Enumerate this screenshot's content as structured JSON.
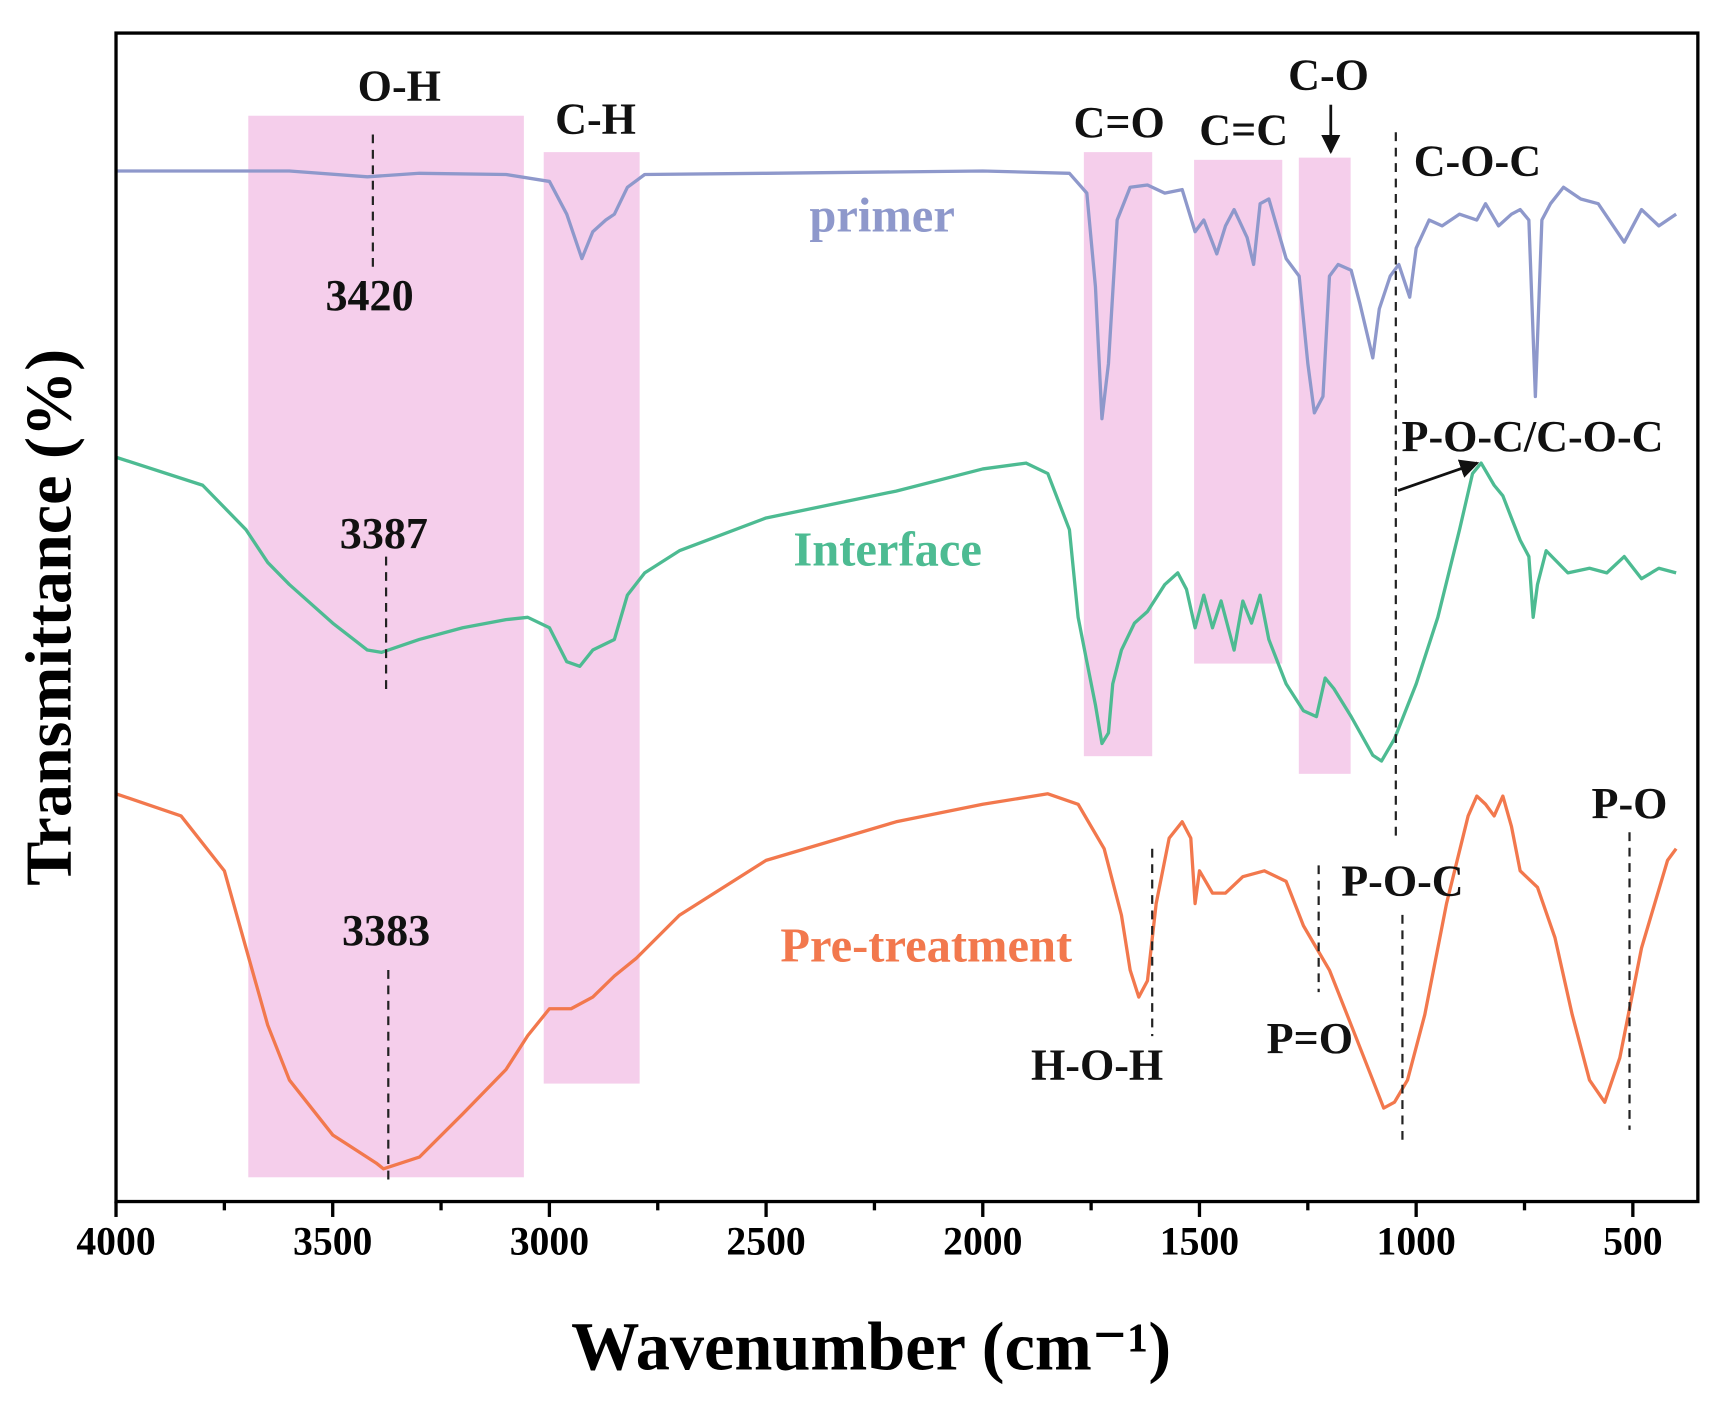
{
  "chart_data": {
    "type": "line",
    "x_label": "Wavenumber (cm⁻¹)",
    "y_label": "Transmittance (%)",
    "xlim": [
      4000,
      350
    ],
    "ylim": [
      0,
      100
    ],
    "xticks": [
      4000,
      3500,
      3000,
      2500,
      2000,
      1500,
      1000,
      500
    ],
    "xticks_minor": [
      3750,
      3250,
      2750,
      2250,
      1750,
      1250,
      750
    ],
    "annotations": [
      "O-H",
      "C-H",
      "C=O",
      "C=C",
      "C-O",
      "C-O-C",
      "3420",
      "3387",
      "P-O-C/C-O-C",
      "3383",
      "H-O-H",
      "P=O",
      "P-O-C",
      "P-O"
    ],
    "series": [
      {
        "name": "primer",
        "color": "#8e98cb",
        "x": [
          4000,
          3600,
          3420,
          3300,
          3100,
          3000,
          2960,
          2925,
          2900,
          2870,
          2850,
          2820,
          2780,
          2500,
          2000,
          1800,
          1760,
          1740,
          1725,
          1710,
          1690,
          1660,
          1620,
          1580,
          1540,
          1510,
          1490,
          1460,
          1440,
          1420,
          1390,
          1375,
          1360,
          1340,
          1300,
          1270,
          1250,
          1235,
          1215,
          1200,
          1180,
          1150,
          1130,
          1100,
          1085,
          1060,
          1040,
          1015,
          1000,
          970,
          940,
          900,
          860,
          840,
          810,
          780,
          760,
          740,
          725,
          710,
          690,
          660,
          620,
          580,
          520,
          480,
          440,
          400
        ],
        "values": [
          88.2,
          88.2,
          87.7,
          88.0,
          87.9,
          87.3,
          84.5,
          80.7,
          83.0,
          84.0,
          84.5,
          86.8,
          87.9,
          88.0,
          88.2,
          88.0,
          86.3,
          78.3,
          67.0,
          71.7,
          84.0,
          86.8,
          87.0,
          86.3,
          86.6,
          83.0,
          84.0,
          81.1,
          83.5,
          84.9,
          82.5,
          80.2,
          85.4,
          85.8,
          80.7,
          79.2,
          71.7,
          67.5,
          68.9,
          79.2,
          80.2,
          79.7,
          76.9,
          72.2,
          76.4,
          79.2,
          80.2,
          77.4,
          81.6,
          84.0,
          83.5,
          84.5,
          84.0,
          85.4,
          83.5,
          84.5,
          84.9,
          84.0,
          68.9,
          84.0,
          85.4,
          86.8,
          85.8,
          85.4,
          82.1,
          84.9,
          83.5,
          84.5
        ]
      },
      {
        "name": "Interface",
        "color": "#4dbb92",
        "x": [
          4000,
          3800,
          3700,
          3650,
          3600,
          3500,
          3420,
          3387,
          3300,
          3200,
          3100,
          3050,
          3000,
          2960,
          2930,
          2900,
          2850,
          2820,
          2780,
          2700,
          2500,
          2200,
          2000,
          1900,
          1850,
          1800,
          1780,
          1760,
          1740,
          1725,
          1710,
          1700,
          1680,
          1650,
          1620,
          1580,
          1550,
          1530,
          1510,
          1490,
          1470,
          1450,
          1420,
          1400,
          1380,
          1360,
          1340,
          1300,
          1260,
          1230,
          1210,
          1190,
          1150,
          1100,
          1080,
          1050,
          1000,
          950,
          900,
          870,
          850,
          820,
          800,
          780,
          760,
          740,
          730,
          720,
          700,
          650,
          600,
          560,
          520,
          480,
          440,
          400
        ],
        "values": [
          63.7,
          61.3,
          57.5,
          54.7,
          52.8,
          49.5,
          47.2,
          47.0,
          48.1,
          49.1,
          49.8,
          50.0,
          49.1,
          46.2,
          45.8,
          47.2,
          48.1,
          51.9,
          53.8,
          55.7,
          58.5,
          60.8,
          62.7,
          63.2,
          62.3,
          57.5,
          50.0,
          46.2,
          42.5,
          39.2,
          40.1,
          44.3,
          47.2,
          49.5,
          50.5,
          52.8,
          53.8,
          52.4,
          49.1,
          51.9,
          49.1,
          51.4,
          47.2,
          51.4,
          49.5,
          51.9,
          48.1,
          44.3,
          42.0,
          41.5,
          44.8,
          43.9,
          41.5,
          38.2,
          37.7,
          39.6,
          44.3,
          50.0,
          57.5,
          62.3,
          63.2,
          61.3,
          60.4,
          58.5,
          56.6,
          55.2,
          50.0,
          52.8,
          55.7,
          53.8,
          54.2,
          53.8,
          55.2,
          53.3,
          54.2,
          53.8
        ]
      },
      {
        "name": "Pre-treatment",
        "color": "#f2784d",
        "x": [
          4000,
          3850,
          3750,
          3700,
          3650,
          3600,
          3500,
          3400,
          3383,
          3300,
          3200,
          3100,
          3050,
          3000,
          2950,
          2900,
          2850,
          2800,
          2700,
          2500,
          2200,
          2000,
          1850,
          1780,
          1720,
          1680,
          1660,
          1640,
          1620,
          1600,
          1570,
          1540,
          1520,
          1510,
          1500,
          1470,
          1440,
          1400,
          1350,
          1300,
          1260,
          1230,
          1200,
          1150,
          1100,
          1075,
          1050,
          1020,
          980,
          930,
          880,
          860,
          840,
          820,
          800,
          780,
          760,
          720,
          680,
          640,
          600,
          565,
          530,
          480,
          420,
          400
        ],
        "values": [
          34.9,
          33.0,
          28.3,
          21.7,
          15.1,
          10.4,
          5.7,
          3.3,
          2.8,
          3.8,
          7.5,
          11.3,
          14.2,
          16.5,
          16.5,
          17.5,
          19.3,
          20.8,
          24.5,
          29.2,
          32.5,
          34.0,
          34.9,
          34.0,
          30.2,
          24.5,
          19.8,
          17.5,
          18.9,
          25.5,
          31.1,
          32.5,
          31.1,
          25.5,
          28.3,
          26.4,
          26.4,
          27.8,
          28.3,
          27.4,
          23.6,
          21.7,
          19.8,
          15.1,
          10.4,
          8.0,
          8.5,
          10.4,
          16.0,
          25.5,
          33.0,
          34.7,
          34.0,
          33.0,
          34.7,
          32.1,
          28.3,
          26.9,
          22.6,
          16.0,
          10.4,
          8.5,
          12.3,
          21.7,
          29.2,
          30.2
        ]
      }
    ]
  }
}
